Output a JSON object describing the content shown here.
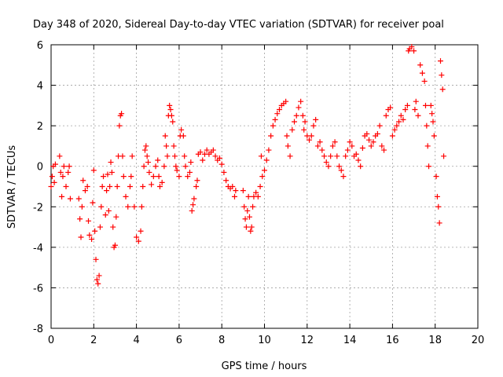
{
  "chart_data": {
    "type": "scatter",
    "title": "Day 348 of 2020, Sidereal Day-to-day VTEC variation (SDTVAR) for receiver poal",
    "xlabel": "GPS time / hours",
    "ylabel": "SDTVAR / TECUs",
    "xlim": [
      0,
      20
    ],
    "ylim": [
      -8,
      6
    ],
    "x_ticks": [
      0,
      2,
      4,
      6,
      8,
      10,
      12,
      14,
      16,
      18,
      20
    ],
    "y_ticks": [
      -8,
      -6,
      -4,
      -2,
      0,
      2,
      4,
      6
    ],
    "x_tick_labels": [
      "0",
      "2",
      "4",
      "6",
      "8",
      "10",
      "12",
      "14",
      "16",
      "18",
      "20"
    ],
    "y_tick_labels": [
      "-8",
      "-6",
      "-4",
      "-2",
      "0",
      "2",
      "4",
      "6"
    ],
    "grid": true,
    "marker": "+",
    "color": "#ff0000",
    "series": [
      {
        "name": "SDTVAR",
        "points": [
          [
            0.0,
            -1.0
          ],
          [
            0.05,
            -0.5
          ],
          [
            0.1,
            0.0
          ],
          [
            0.15,
            -0.8
          ],
          [
            0.2,
            0.1
          ],
          [
            0.4,
            0.5
          ],
          [
            0.45,
            -0.3
          ],
          [
            0.5,
            -1.5
          ],
          [
            0.55,
            -0.5
          ],
          [
            0.6,
            0.0
          ],
          [
            0.7,
            -1.0
          ],
          [
            0.8,
            -0.3
          ],
          [
            0.85,
            0.0
          ],
          [
            0.9,
            -1.6
          ],
          [
            1.3,
            -1.6
          ],
          [
            1.35,
            -2.6
          ],
          [
            1.4,
            -3.5
          ],
          [
            1.45,
            -2.0
          ],
          [
            1.5,
            -0.7
          ],
          [
            1.6,
            -1.2
          ],
          [
            1.7,
            -1.0
          ],
          [
            1.75,
            -2.7
          ],
          [
            1.8,
            -3.4
          ],
          [
            1.9,
            -3.6
          ],
          [
            1.95,
            -1.8
          ],
          [
            2.0,
            -0.2
          ],
          [
            2.05,
            -3.2
          ],
          [
            2.1,
            -4.6
          ],
          [
            2.15,
            -5.6
          ],
          [
            2.2,
            -5.8
          ],
          [
            2.25,
            -5.4
          ],
          [
            2.3,
            -3.0
          ],
          [
            2.35,
            -2.0
          ],
          [
            2.4,
            -1.0
          ],
          [
            2.45,
            -0.5
          ],
          [
            2.55,
            -2.4
          ],
          [
            2.6,
            -1.2
          ],
          [
            2.65,
            -0.4
          ],
          [
            2.7,
            -2.2
          ],
          [
            2.75,
            -1.0
          ],
          [
            2.8,
            0.2
          ],
          [
            2.85,
            -0.3
          ],
          [
            2.9,
            -3.0
          ],
          [
            2.95,
            -4.0
          ],
          [
            3.0,
            -3.9
          ],
          [
            3.05,
            -2.5
          ],
          [
            3.1,
            -1.0
          ],
          [
            3.15,
            0.5
          ],
          [
            3.2,
            2.0
          ],
          [
            3.25,
            2.5
          ],
          [
            3.3,
            2.6
          ],
          [
            3.35,
            0.5
          ],
          [
            3.4,
            -0.5
          ],
          [
            3.5,
            -1.5
          ],
          [
            3.6,
            -2.0
          ],
          [
            3.7,
            -1.0
          ],
          [
            3.75,
            -0.5
          ],
          [
            3.8,
            0.5
          ],
          [
            3.9,
            -2.0
          ],
          [
            4.0,
            -3.5
          ],
          [
            4.1,
            -3.7
          ],
          [
            4.2,
            -3.2
          ],
          [
            4.25,
            -2.0
          ],
          [
            4.3,
            -1.0
          ],
          [
            4.35,
            0.0
          ],
          [
            4.4,
            0.8
          ],
          [
            4.45,
            1.0
          ],
          [
            4.5,
            0.5
          ],
          [
            4.55,
            0.2
          ],
          [
            4.6,
            -0.3
          ],
          [
            4.7,
            -0.9
          ],
          [
            4.8,
            -0.5
          ],
          [
            4.9,
            0.0
          ],
          [
            5.0,
            0.3
          ],
          [
            5.05,
            -0.5
          ],
          [
            5.1,
            -1.0
          ],
          [
            5.2,
            -0.8
          ],
          [
            5.3,
            0.0
          ],
          [
            5.35,
            1.5
          ],
          [
            5.4,
            1.0
          ],
          [
            5.45,
            0.5
          ],
          [
            5.5,
            2.5
          ],
          [
            5.55,
            3.0
          ],
          [
            5.6,
            2.8
          ],
          [
            5.65,
            2.5
          ],
          [
            5.7,
            2.2
          ],
          [
            5.75,
            1.0
          ],
          [
            5.8,
            0.5
          ],
          [
            5.85,
            0.0
          ],
          [
            5.9,
            -0.2
          ],
          [
            6.0,
            -0.5
          ],
          [
            6.05,
            1.5
          ],
          [
            6.1,
            1.8
          ],
          [
            6.2,
            1.5
          ],
          [
            6.25,
            0.5
          ],
          [
            6.3,
            0.0
          ],
          [
            6.4,
            -0.5
          ],
          [
            6.5,
            -0.3
          ],
          [
            6.55,
            0.2
          ],
          [
            6.6,
            -2.2
          ],
          [
            6.65,
            -1.9
          ],
          [
            6.7,
            -1.6
          ],
          [
            6.8,
            -1.0
          ],
          [
            6.85,
            -0.7
          ],
          [
            6.9,
            0.6
          ],
          [
            7.0,
            0.7
          ],
          [
            7.1,
            0.3
          ],
          [
            7.2,
            0.6
          ],
          [
            7.3,
            0.8
          ],
          [
            7.4,
            0.6
          ],
          [
            7.5,
            0.7
          ],
          [
            7.6,
            0.8
          ],
          [
            7.7,
            0.5
          ],
          [
            7.8,
            0.3
          ],
          [
            7.9,
            0.4
          ],
          [
            8.0,
            0.1
          ],
          [
            8.1,
            -0.3
          ],
          [
            8.2,
            -0.7
          ],
          [
            8.3,
            -1.0
          ],
          [
            8.4,
            -1.1
          ],
          [
            8.5,
            -1.0
          ],
          [
            8.6,
            -1.5
          ],
          [
            8.65,
            -1.2
          ],
          [
            9.0,
            -1.2
          ],
          [
            9.05,
            -2.0
          ],
          [
            9.1,
            -2.6
          ],
          [
            9.15,
            -3.0
          ],
          [
            9.2,
            -2.2
          ],
          [
            9.25,
            -1.5
          ],
          [
            9.3,
            -2.5
          ],
          [
            9.35,
            -3.2
          ],
          [
            9.4,
            -3.0
          ],
          [
            9.45,
            -2.0
          ],
          [
            9.5,
            -1.5
          ],
          [
            9.6,
            -1.3
          ],
          [
            9.7,
            -1.5
          ],
          [
            9.8,
            -1.0
          ],
          [
            9.85,
            0.5
          ],
          [
            9.9,
            -0.5
          ],
          [
            10.0,
            -0.2
          ],
          [
            10.1,
            0.3
          ],
          [
            10.2,
            0.8
          ],
          [
            10.3,
            1.5
          ],
          [
            10.4,
            2.0
          ],
          [
            10.5,
            2.3
          ],
          [
            10.6,
            2.6
          ],
          [
            10.7,
            2.8
          ],
          [
            10.8,
            3.0
          ],
          [
            10.9,
            3.1
          ],
          [
            11.0,
            3.2
          ],
          [
            11.05,
            1.5
          ],
          [
            11.1,
            1.0
          ],
          [
            11.2,
            0.5
          ],
          [
            11.3,
            1.8
          ],
          [
            11.4,
            2.2
          ],
          [
            11.5,
            2.5
          ],
          [
            11.6,
            2.9
          ],
          [
            11.7,
            3.2
          ],
          [
            11.8,
            2.5
          ],
          [
            11.85,
            1.8
          ],
          [
            11.9,
            2.2
          ],
          [
            12.0,
            1.5
          ],
          [
            12.1,
            1.3
          ],
          [
            12.2,
            1.5
          ],
          [
            12.3,
            2.0
          ],
          [
            12.4,
            2.3
          ],
          [
            12.5,
            1.0
          ],
          [
            12.6,
            1.2
          ],
          [
            12.7,
            0.8
          ],
          [
            12.8,
            0.5
          ],
          [
            12.9,
            0.2
          ],
          [
            13.0,
            0.0
          ],
          [
            13.1,
            0.5
          ],
          [
            13.2,
            1.0
          ],
          [
            13.3,
            1.2
          ],
          [
            13.4,
            0.5
          ],
          [
            13.5,
            0.0
          ],
          [
            13.6,
            -0.2
          ],
          [
            13.7,
            -0.5
          ],
          [
            13.8,
            0.5
          ],
          [
            13.9,
            0.8
          ],
          [
            14.0,
            1.2
          ],
          [
            14.1,
            1.0
          ],
          [
            14.2,
            0.5
          ],
          [
            14.3,
            0.6
          ],
          [
            14.4,
            0.3
          ],
          [
            14.5,
            0.0
          ],
          [
            14.6,
            0.9
          ],
          [
            14.7,
            1.5
          ],
          [
            14.8,
            1.6
          ],
          [
            14.9,
            1.3
          ],
          [
            15.0,
            1.0
          ],
          [
            15.1,
            1.2
          ],
          [
            15.2,
            1.5
          ],
          [
            15.3,
            1.6
          ],
          [
            15.4,
            2.0
          ],
          [
            15.5,
            1.0
          ],
          [
            15.6,
            0.8
          ],
          [
            15.7,
            2.5
          ],
          [
            15.8,
            2.8
          ],
          [
            15.9,
            2.9
          ],
          [
            16.0,
            1.5
          ],
          [
            16.1,
            1.8
          ],
          [
            16.2,
            2.0
          ],
          [
            16.3,
            2.2
          ],
          [
            16.4,
            2.5
          ],
          [
            16.5,
            2.3
          ],
          [
            16.6,
            2.8
          ],
          [
            16.7,
            3.0
          ],
          [
            16.75,
            5.7
          ],
          [
            16.8,
            5.8
          ],
          [
            16.9,
            5.9
          ],
          [
            17.0,
            5.7
          ],
          [
            17.05,
            2.8
          ],
          [
            17.1,
            3.2
          ],
          [
            17.2,
            2.5
          ],
          [
            17.3,
            5.0
          ],
          [
            17.4,
            4.6
          ],
          [
            17.5,
            4.2
          ],
          [
            17.55,
            3.0
          ],
          [
            17.6,
            2.0
          ],
          [
            17.65,
            1.0
          ],
          [
            17.7,
            0.0
          ],
          [
            17.8,
            3.0
          ],
          [
            17.85,
            2.6
          ],
          [
            17.9,
            2.2
          ],
          [
            17.95,
            1.5
          ],
          [
            18.05,
            -0.5
          ],
          [
            18.1,
            -1.5
          ],
          [
            18.15,
            -2.0
          ],
          [
            18.2,
            -2.8
          ],
          [
            18.25,
            5.2
          ],
          [
            18.3,
            4.5
          ],
          [
            18.35,
            3.8
          ],
          [
            18.4,
            0.5
          ]
        ]
      }
    ]
  }
}
